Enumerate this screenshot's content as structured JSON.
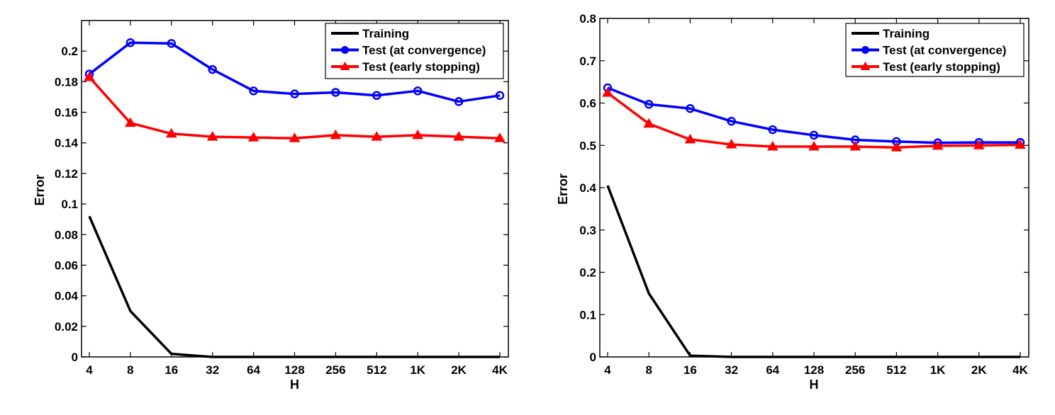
{
  "chart_data": [
    {
      "type": "line",
      "title": "",
      "xlabel": "H",
      "ylabel": "Error",
      "categories": [
        "4",
        "8",
        "16",
        "32",
        "64",
        "128",
        "256",
        "512",
        "1K",
        "2K",
        "4K"
      ],
      "ylim": [
        0,
        0.22
      ],
      "yticks": [
        0,
        0.02,
        0.04,
        0.06,
        0.08,
        0.1,
        0.12,
        0.14,
        0.16,
        0.18,
        0.2
      ],
      "ytick_labels": [
        "0",
        "0.02",
        "0.04",
        "0.06",
        "0.08",
        "0.1",
        "0.12",
        "0.14",
        "0.16",
        "0.18",
        "0.2"
      ],
      "grid": false,
      "legend_position": "top-right",
      "series": [
        {
          "name": "Training",
          "color": "#000000",
          "marker": "none",
          "values": [
            0.092,
            0.03,
            0.002,
            0.0,
            0.0,
            0.0,
            0.0,
            0.0,
            0.0,
            0.0,
            0.0
          ]
        },
        {
          "name": "Test (at convergence)",
          "color": "#0000ff",
          "marker": "circle",
          "values": [
            0.185,
            0.2055,
            0.205,
            0.188,
            0.174,
            0.172,
            0.173,
            0.171,
            0.174,
            0.167,
            0.171
          ]
        },
        {
          "name": "Test (early stopping)",
          "color": "#ff0000",
          "marker": "triangle",
          "values": [
            0.183,
            0.153,
            0.146,
            0.144,
            0.1435,
            0.143,
            0.145,
            0.144,
            0.145,
            0.144,
            0.143
          ]
        }
      ]
    },
    {
      "type": "line",
      "title": "",
      "xlabel": "H",
      "ylabel": "Error",
      "categories": [
        "4",
        "8",
        "16",
        "32",
        "64",
        "128",
        "256",
        "512",
        "1K",
        "2K",
        "4K"
      ],
      "ylim": [
        0,
        0.8
      ],
      "yticks": [
        0,
        0.1,
        0.2,
        0.3,
        0.4,
        0.5,
        0.6,
        0.7,
        0.8
      ],
      "ytick_labels": [
        "0",
        "0.1",
        "0.2",
        "0.3",
        "0.4",
        "0.5",
        "0.6",
        "0.7",
        "0.8"
      ],
      "grid": false,
      "legend_position": "top-right",
      "series": [
        {
          "name": "Training",
          "color": "#000000",
          "marker": "none",
          "values": [
            0.405,
            0.15,
            0.003,
            0.0,
            0.0,
            0.0,
            0.0,
            0.0,
            0.0,
            0.0,
            0.0
          ]
        },
        {
          "name": "Test (at convergence)",
          "color": "#0000ff",
          "marker": "circle",
          "values": [
            0.636,
            0.597,
            0.587,
            0.557,
            0.537,
            0.524,
            0.513,
            0.509,
            0.506,
            0.507,
            0.507
          ]
        },
        {
          "name": "Test (early stopping)",
          "color": "#ff0000",
          "marker": "triangle",
          "values": [
            0.624,
            0.551,
            0.514,
            0.502,
            0.497,
            0.497,
            0.497,
            0.495,
            0.499,
            0.5,
            0.501
          ]
        }
      ]
    }
  ]
}
